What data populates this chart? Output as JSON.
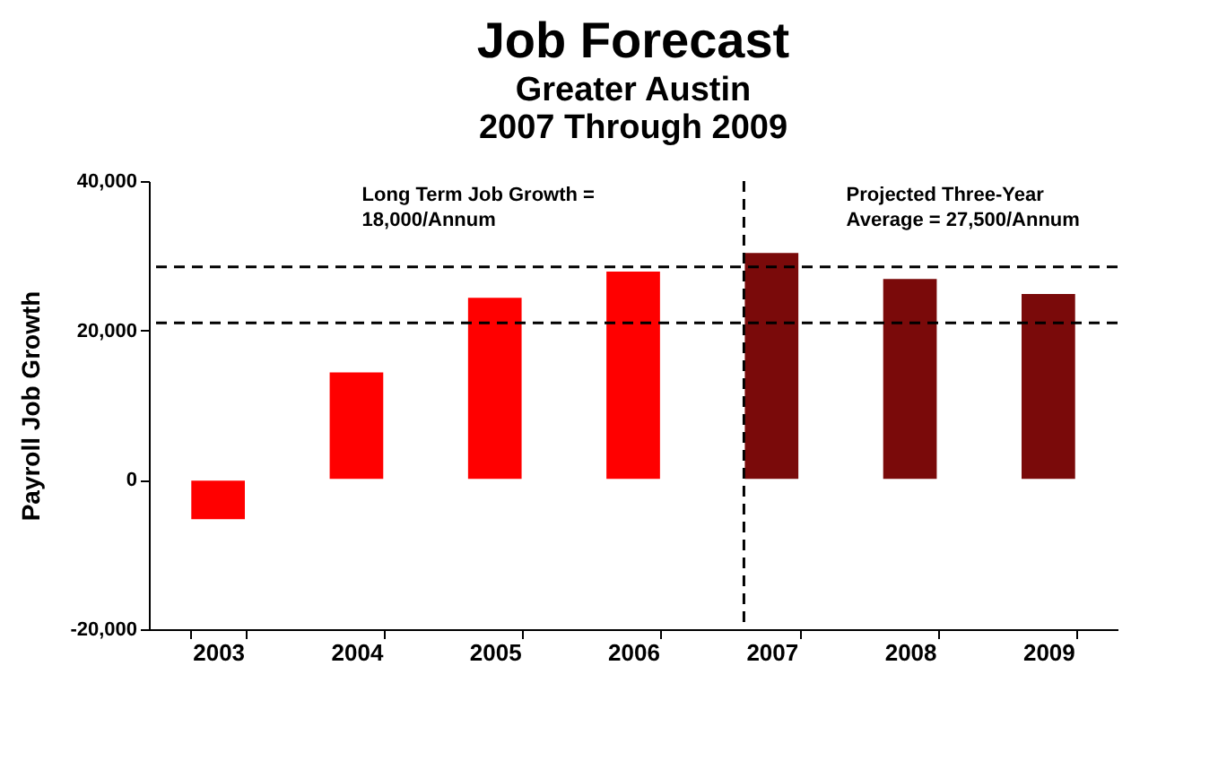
{
  "chart_data": {
    "type": "bar",
    "title": "Job Forecast",
    "subtitle": "Greater Austin\n2007 Through 2009",
    "ylabel": "Payroll Job Growth",
    "categories": [
      "2003",
      "2004",
      "2005",
      "2006",
      "2007",
      "2008",
      "2009"
    ],
    "values": [
      -5400,
      14500,
      24500,
      28000,
      30500,
      27000,
      25000
    ],
    "colors": [
      "#ff0000",
      "#ff0000",
      "#ff0000",
      "#ff0000",
      "#7a0a0a",
      "#7a0a0a",
      "#7a0a0a"
    ],
    "ylim": [
      -20000,
      40000
    ],
    "yticks": [
      {
        "value": -20000,
        "label": "-20,000"
      },
      {
        "value": 0,
        "label": "0"
      },
      {
        "value": 20000,
        "label": "20,000"
      },
      {
        "value": 40000,
        "label": "40,000"
      }
    ],
    "grid": false,
    "annotations": [
      "Long Term Job Growth = 18,000/Annum",
      "Projected Three-Year Average = 27,500/Annum"
    ],
    "ref_lines": [
      {
        "axis": "y",
        "value": 21000,
        "color": "#000000",
        "line_style": "dashed"
      },
      {
        "axis": "y",
        "value": 28500,
        "color": "#000000",
        "line_style": "dashed"
      },
      {
        "axis": "x",
        "value": "2007",
        "color": "#000000",
        "line_style": "dashed"
      }
    ]
  }
}
